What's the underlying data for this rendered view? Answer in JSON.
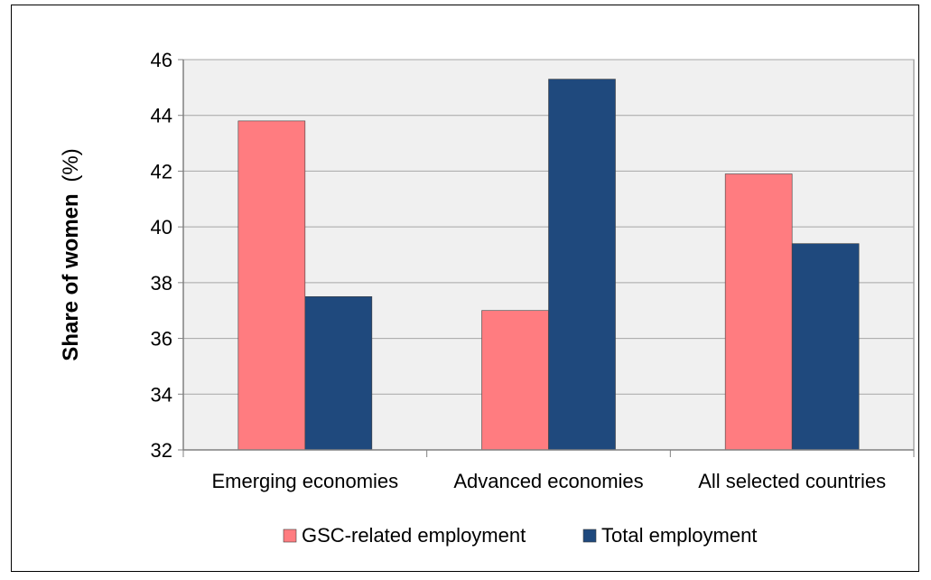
{
  "chart_data": {
    "type": "bar",
    "categories": [
      "Emerging economies",
      "Advanced economies",
      "All selected countries"
    ],
    "series": [
      {
        "name": "GSC-related employment",
        "values": [
          43.8,
          37.0,
          41.9
        ],
        "color": "#ff7c80"
      },
      {
        "name": "Total employment",
        "values": [
          37.5,
          45.3,
          39.4
        ],
        "color": "#1f497d"
      }
    ],
    "ylabel_bold": "Share of women",
    "ylabel_unit": "(%)",
    "ylim": [
      32,
      46
    ],
    "yticks": [
      32,
      34,
      36,
      38,
      40,
      42,
      44,
      46
    ],
    "grid": true,
    "plot_background": "#f0f0f0",
    "gridline_color": "#a6a6a6",
    "legend_position": "bottom"
  }
}
